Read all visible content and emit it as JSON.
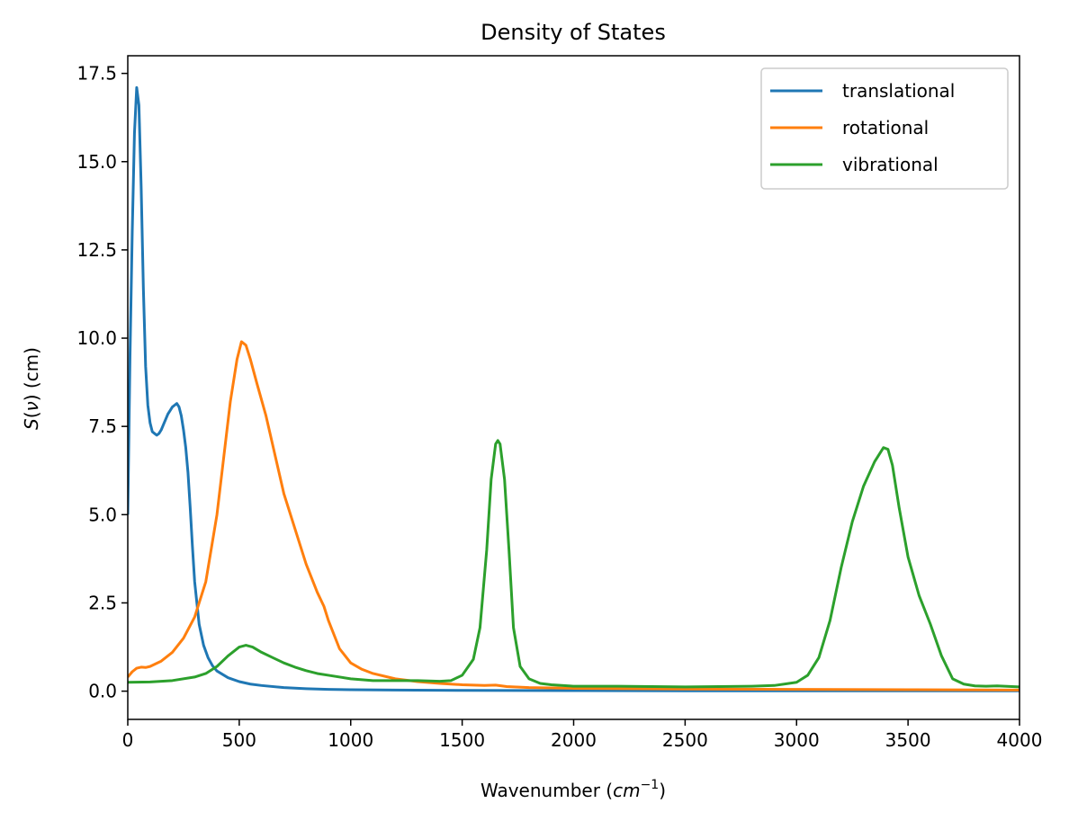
{
  "chart_data": {
    "type": "line",
    "title": "Density of States",
    "xlabel_base": "Wavenumber (",
    "xlabel_var": "cm",
    "xlabel_sup": "−1",
    "xlabel_end": ")",
    "ylabel_var": "S",
    "ylabel_paren_open": "(",
    "ylabel_nu": "ν",
    "ylabel_rest": ") (cm)",
    "xlim": [
      0,
      4000
    ],
    "ylim": [
      -0.8,
      18.0
    ],
    "xticks": [
      0,
      500,
      1000,
      1500,
      2000,
      2500,
      3000,
      3500,
      4000
    ],
    "xtick_labels": [
      "0",
      "500",
      "1000",
      "1500",
      "2000",
      "2500",
      "3000",
      "3500",
      "4000"
    ],
    "yticks": [
      0.0,
      2.5,
      5.0,
      7.5,
      10.0,
      12.5,
      15.0,
      17.5
    ],
    "ytick_labels": [
      "0.0",
      "2.5",
      "5.0",
      "7.5",
      "10.0",
      "12.5",
      "15.0",
      "17.5"
    ],
    "grid": false,
    "legend_position": "top-right",
    "series": [
      {
        "name": "translational",
        "color": "#1f77b4",
        "x": [
          0,
          10,
          20,
          30,
          40,
          50,
          60,
          70,
          80,
          90,
          100,
          110,
          120,
          130,
          140,
          150,
          160,
          170,
          180,
          190,
          200,
          210,
          220,
          230,
          240,
          250,
          260,
          270,
          280,
          290,
          300,
          320,
          340,
          360,
          380,
          400,
          450,
          500,
          550,
          600,
          700,
          800,
          900,
          1000,
          1200,
          1500,
          2000,
          2500,
          3000,
          3500,
          4000
        ],
        "values": [
          5.0,
          9.5,
          13.0,
          15.8,
          17.1,
          16.6,
          14.3,
          11.4,
          9.2,
          8.1,
          7.6,
          7.35,
          7.3,
          7.25,
          7.3,
          7.4,
          7.55,
          7.7,
          7.85,
          7.95,
          8.05,
          8.1,
          8.15,
          8.05,
          7.8,
          7.4,
          6.9,
          6.2,
          5.2,
          4.1,
          3.1,
          1.9,
          1.3,
          0.95,
          0.72,
          0.57,
          0.38,
          0.27,
          0.2,
          0.16,
          0.1,
          0.07,
          0.05,
          0.04,
          0.03,
          0.02,
          0.015,
          0.01,
          0.01,
          0.01,
          0.01
        ]
      },
      {
        "name": "rotational",
        "color": "#ff7f0e",
        "x": [
          0,
          20,
          40,
          60,
          80,
          100,
          150,
          200,
          250,
          300,
          350,
          400,
          430,
          460,
          490,
          510,
          530,
          550,
          580,
          620,
          660,
          700,
          750,
          800,
          850,
          880,
          900,
          950,
          1000,
          1050,
          1100,
          1200,
          1300,
          1400,
          1500,
          1600,
          1650,
          1700,
          1800,
          2000,
          2500,
          3000,
          3500,
          4000
        ],
        "values": [
          0.4,
          0.55,
          0.65,
          0.68,
          0.67,
          0.7,
          0.85,
          1.1,
          1.5,
          2.1,
          3.1,
          5.0,
          6.6,
          8.2,
          9.4,
          9.9,
          9.8,
          9.4,
          8.7,
          7.8,
          6.7,
          5.6,
          4.6,
          3.6,
          2.8,
          2.4,
          2.0,
          1.2,
          0.8,
          0.62,
          0.5,
          0.35,
          0.27,
          0.22,
          0.18,
          0.16,
          0.17,
          0.13,
          0.1,
          0.08,
          0.06,
          0.05,
          0.04,
          0.03
        ]
      },
      {
        "name": "vibrational",
        "color": "#2ca02c",
        "x": [
          0,
          100,
          200,
          300,
          350,
          400,
          450,
          500,
          530,
          560,
          600,
          650,
          700,
          750,
          800,
          850,
          900,
          1000,
          1100,
          1200,
          1300,
          1400,
          1450,
          1500,
          1550,
          1580,
          1610,
          1630,
          1650,
          1660,
          1670,
          1690,
          1710,
          1730,
          1760,
          1800,
          1850,
          1900,
          2000,
          2200,
          2500,
          2800,
          2900,
          3000,
          3050,
          3100,
          3150,
          3200,
          3250,
          3300,
          3350,
          3390,
          3410,
          3430,
          3460,
          3500,
          3550,
          3600,
          3650,
          3700,
          3750,
          3800,
          3850,
          3900,
          4000
        ],
        "values": [
          0.25,
          0.26,
          0.3,
          0.4,
          0.5,
          0.7,
          1.0,
          1.25,
          1.3,
          1.25,
          1.1,
          0.95,
          0.8,
          0.68,
          0.58,
          0.5,
          0.45,
          0.35,
          0.3,
          0.3,
          0.3,
          0.28,
          0.3,
          0.45,
          0.9,
          1.8,
          4.0,
          6.0,
          7.0,
          7.1,
          7.0,
          6.0,
          4.0,
          1.8,
          0.7,
          0.35,
          0.22,
          0.18,
          0.14,
          0.14,
          0.12,
          0.14,
          0.16,
          0.25,
          0.45,
          0.95,
          2.0,
          3.5,
          4.8,
          5.8,
          6.5,
          6.9,
          6.85,
          6.4,
          5.2,
          3.8,
          2.7,
          1.9,
          1.0,
          0.35,
          0.2,
          0.15,
          0.14,
          0.15,
          0.12
        ]
      }
    ]
  }
}
